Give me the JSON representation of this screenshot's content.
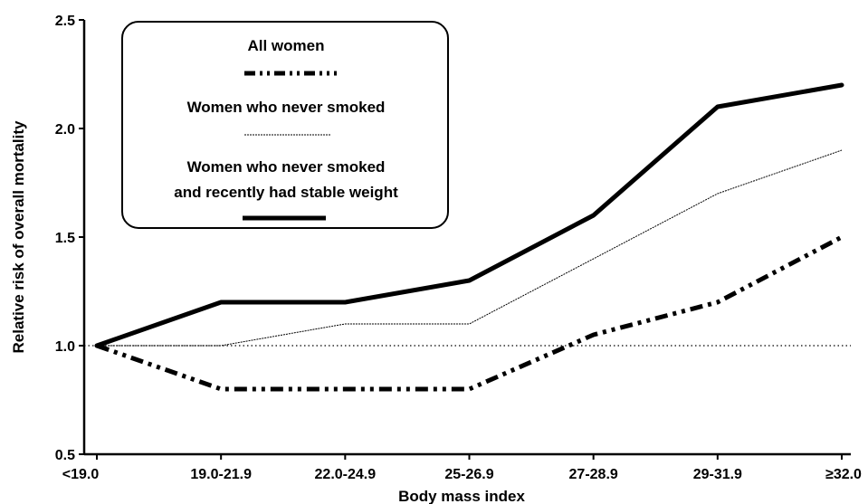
{
  "chart_data": {
    "type": "line",
    "title": "",
    "xlabel": "Body mass index",
    "ylabel": "Relative risk of overall mortality",
    "categories": [
      "<19.0",
      "19.0-21.9",
      "22.0-24.9",
      "25-26.9",
      "27-28.9",
      "29-31.9",
      "≥32.0"
    ],
    "ylim": [
      0.5,
      2.5
    ],
    "yticks": [
      "0.5",
      "1.0",
      "1.5",
      "2.0",
      "2.5"
    ],
    "reference_line": 1.0,
    "grid": false,
    "legend_position": "top-left",
    "series": [
      {
        "name": "All women",
        "style": "dash-dot",
        "values": [
          1.0,
          0.8,
          0.8,
          0.8,
          1.05,
          1.2,
          1.5
        ]
      },
      {
        "name": "Women who never smoked",
        "style": "thin",
        "values": [
          1.0,
          1.0,
          1.1,
          1.1,
          1.4,
          1.7,
          1.9
        ]
      },
      {
        "name": "Women who never smoked and recently had stable weight",
        "style": "thick",
        "values": [
          1.0,
          1.2,
          1.2,
          1.3,
          1.6,
          2.1,
          2.2
        ]
      }
    ]
  },
  "legend": {
    "line1": "All women",
    "line2": "Women who never smoked",
    "line3a": "Women who never smoked",
    "line3b": "and recently had stable weight"
  }
}
